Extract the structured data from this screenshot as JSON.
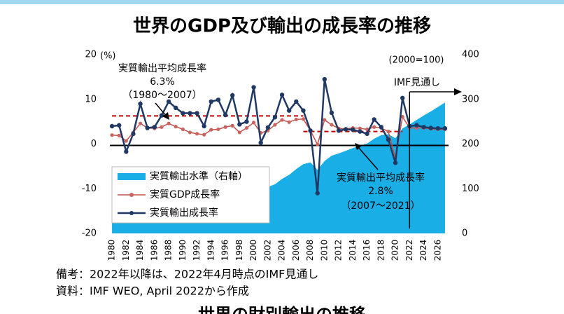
{
  "chart_data": {
    "type": "combo",
    "title": "世界のGDP及び輸出の成長率の推移",
    "y_unit": "(%)",
    "y2_unit": "(2000=100)",
    "x": [
      1980,
      1981,
      1982,
      1983,
      1984,
      1985,
      1986,
      1987,
      1988,
      1989,
      1990,
      1991,
      1992,
      1993,
      1994,
      1995,
      1996,
      1997,
      1998,
      1999,
      2000,
      2001,
      2002,
      2003,
      2004,
      2005,
      2006,
      2007,
      2008,
      2009,
      2010,
      2011,
      2012,
      2013,
      2014,
      2015,
      2016,
      2017,
      2018,
      2019,
      2020,
      2021,
      2022,
      2023,
      2024,
      2025,
      2026,
      2027
    ],
    "xlim": [
      1979.5,
      2027.5
    ],
    "xticks": [
      1980,
      1982,
      1984,
      1986,
      1988,
      1990,
      1992,
      1994,
      1996,
      1998,
      2000,
      2002,
      2004,
      2006,
      2008,
      2010,
      2012,
      2014,
      2016,
      2018,
      2020,
      2022,
      2024,
      2026
    ],
    "ylim": [
      -20,
      20
    ],
    "yticks": [
      -20,
      -10,
      0,
      10,
      20
    ],
    "y2lim": [
      0,
      400
    ],
    "y2ticks": [
      0,
      100,
      200,
      300,
      400
    ],
    "series": [
      {
        "name": "実質輸出水準（右軸）",
        "type": "area",
        "axis": "y2",
        "color": "#1aaee6",
        "values": [
          29,
          30,
          30,
          31,
          33,
          34,
          36,
          38,
          42,
          45,
          48,
          51,
          54,
          56,
          61,
          67,
          71,
          79,
          83,
          88,
          100,
          100,
          104,
          110,
          122,
          131,
          144,
          155,
          159,
          142,
          162,
          174,
          179,
          185,
          191,
          196,
          201,
          212,
          220,
          222,
          213,
          235,
          244,
          254,
          264,
          273,
          283,
          293
        ]
      },
      {
        "name": "実質GDP成長率",
        "type": "line",
        "color": "#c0504d",
        "values": [
          2.0,
          1.9,
          0.7,
          2.6,
          4.6,
          3.6,
          3.5,
          3.8,
          4.6,
          3.9,
          3.3,
          2.6,
          2.3,
          2.1,
          3.2,
          3.3,
          3.8,
          4.1,
          2.6,
          3.6,
          4.8,
          2.5,
          3.0,
          4.3,
          5.4,
          4.9,
          5.5,
          5.6,
          3.0,
          -0.1,
          5.4,
          4.3,
          3.5,
          3.4,
          3.6,
          3.5,
          3.3,
          3.8,
          3.6,
          2.8,
          -3.1,
          6.1,
          3.6,
          3.6,
          3.6,
          3.4,
          3.3,
          3.3
        ]
      },
      {
        "name": "実質輸出成長率",
        "type": "line",
        "color": "#1f3864",
        "values": [
          4.0,
          4.2,
          -1.7,
          2.3,
          9.0,
          3.6,
          3.8,
          6.4,
          9.5,
          8.1,
          6.9,
          6.9,
          6.9,
          4.0,
          9.5,
          9.9,
          6.5,
          10.9,
          4.4,
          5.0,
          12.7,
          0.3,
          3.7,
          6.0,
          11.0,
          7.5,
          9.5,
          7.5,
          3.0,
          -11.0,
          14.5,
          7.0,
          3.0,
          3.3,
          3.2,
          2.8,
          2.3,
          5.5,
          3.8,
          1.0,
          -4.2,
          10.3,
          4.0,
          4.2,
          3.8,
          3.6,
          3.5,
          3.5
        ]
      }
    ],
    "reference_lines": [
      {
        "value": 6.3,
        "from": 1980,
        "to": 2007,
        "title": "実質輸出平均成長率",
        "label": "6.3%",
        "period": "（1980～2007）"
      },
      {
        "value": 2.8,
        "from": 2007,
        "to": 2021,
        "title": "実質輸出平均成長率",
        "label": "2.8%",
        "period": "（2007～2021）"
      }
    ],
    "forecast_start": 2022,
    "forecast_label": "IMF見通し",
    "notes": [
      "備考：2022年以降は、2022年4月時点のIMF見通し",
      "資料：IMF WEO, April 2022から作成"
    ],
    "next_title": "世界の財別輸出の推移"
  }
}
